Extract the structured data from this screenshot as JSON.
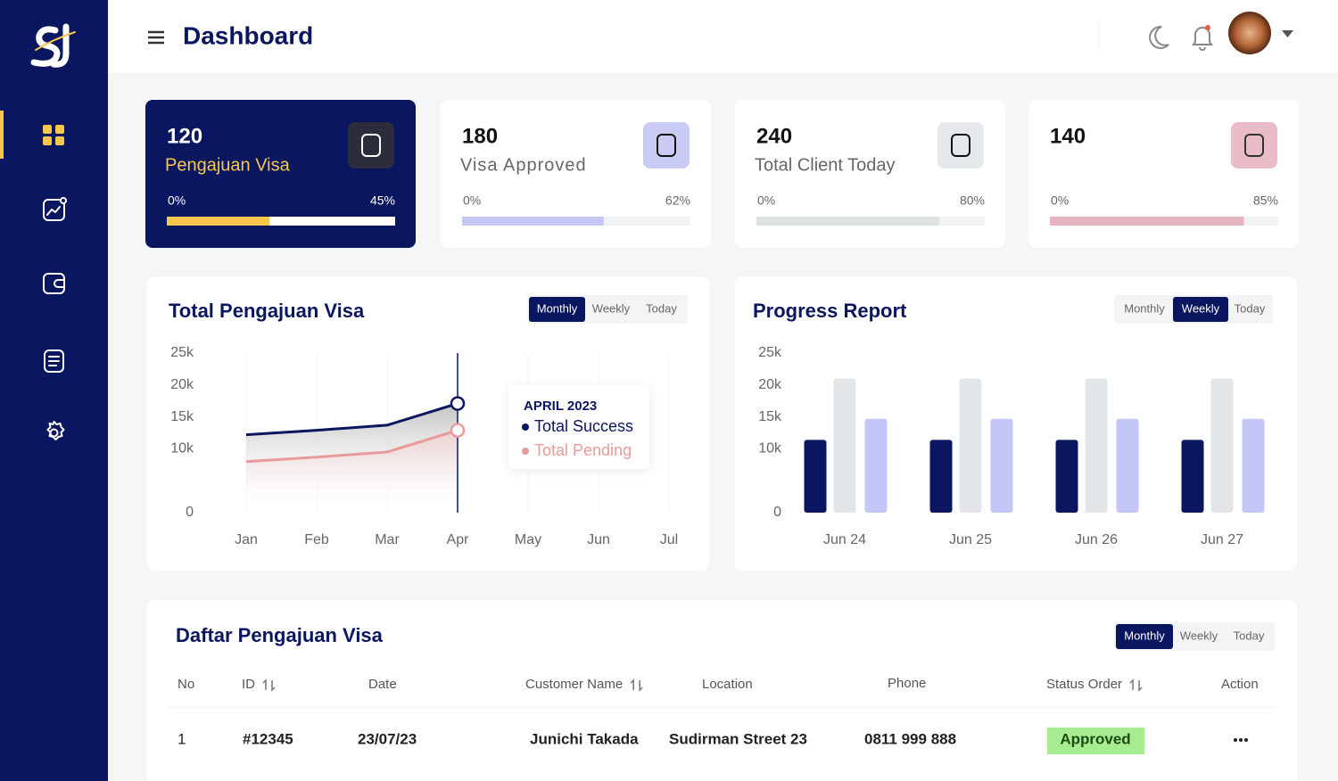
{
  "header": {
    "title": "Dashboard"
  },
  "stats": [
    {
      "value": "120",
      "label": "Pengajuan Visa",
      "min_label": "0%",
      "progress": 45,
      "progress_label": "45%"
    },
    {
      "value": "180",
      "label": "Visa Approved",
      "min_label": "0%",
      "progress": 62,
      "progress_label": "62%"
    },
    {
      "value": "240",
      "label": "Total Client Today",
      "min_label": "0%",
      "progress": 80,
      "progress_label": "80%"
    },
    {
      "value": "140",
      "min_label": "0%",
      "progress": 85,
      "progress_label": "85%"
    }
  ],
  "chart_data": [
    {
      "type": "line",
      "title": "Total Pengajuan Visa",
      "tabs": [
        "Monthly",
        "Weekly",
        "Today"
      ],
      "active_tab": 0,
      "categories": [
        "Jan",
        "Feb",
        "Mar",
        "Apr",
        "May",
        "Jun",
        "Jul"
      ],
      "ylim": [
        0,
        25000
      ],
      "yticks": [
        0,
        {
          "value": 10000,
          "label": "10k"
        },
        {
          "value": 15000,
          "label": "15k"
        },
        {
          "value": 20000,
          "label": "20k"
        },
        {
          "value": 25000,
          "label": "25k"
        }
      ],
      "series": [
        {
          "name": "Total Success",
          "color": "#0b1660",
          "values": [
            12200,
            12900,
            13700,
            17100,
            null,
            null,
            null
          ]
        },
        {
          "name": "Total Pending",
          "color": "#e99a9a",
          "values": [
            8000,
            8700,
            9500,
            12900,
            null,
            null,
            null
          ]
        }
      ],
      "tooltip": {
        "title": "APRIL 2023",
        "index": 3
      }
    },
    {
      "type": "bar",
      "title": "Progress Report",
      "tabs": [
        "Monthly",
        "Weekly",
        "Today"
      ],
      "active_tab": 1,
      "categories": [
        "Jun 24",
        "Jun 25",
        "Jun 26",
        "Jun 27"
      ],
      "ylim": [
        0,
        25000
      ],
      "yticks": [
        0,
        {
          "value": 10000,
          "label": "10k"
        },
        {
          "value": 15000,
          "label": "15k"
        },
        {
          "value": 20000,
          "label": "20k"
        },
        {
          "value": 25000,
          "label": "25k"
        }
      ],
      "series": [
        {
          "color": "#0b1660",
          "values": [
            11400,
            11400,
            11400,
            11400
          ]
        },
        {
          "color": "#e3e6e8",
          "values": [
            21000,
            21000,
            21000,
            21000
          ]
        },
        {
          "color": "#c3c6f7",
          "values": [
            14700,
            14700,
            14700,
            14700
          ]
        }
      ]
    }
  ],
  "table": {
    "title": "Daftar Pengajuan Visa",
    "tabs": [
      "Monthly",
      "Weekly",
      "Today"
    ],
    "active_tab": 0,
    "headers": [
      "No",
      "ID",
      "Date",
      "Customer Name",
      "Location",
      "Phone",
      "Status Order",
      "Action"
    ],
    "sortable": [
      false,
      true,
      false,
      true,
      false,
      false,
      true,
      false
    ],
    "rows": [
      [
        "1",
        "#12345",
        "23/07/23",
        "Junichi Takada",
        "Sudirman Street 23",
        "0811 999 888",
        "Approved"
      ]
    ]
  }
}
